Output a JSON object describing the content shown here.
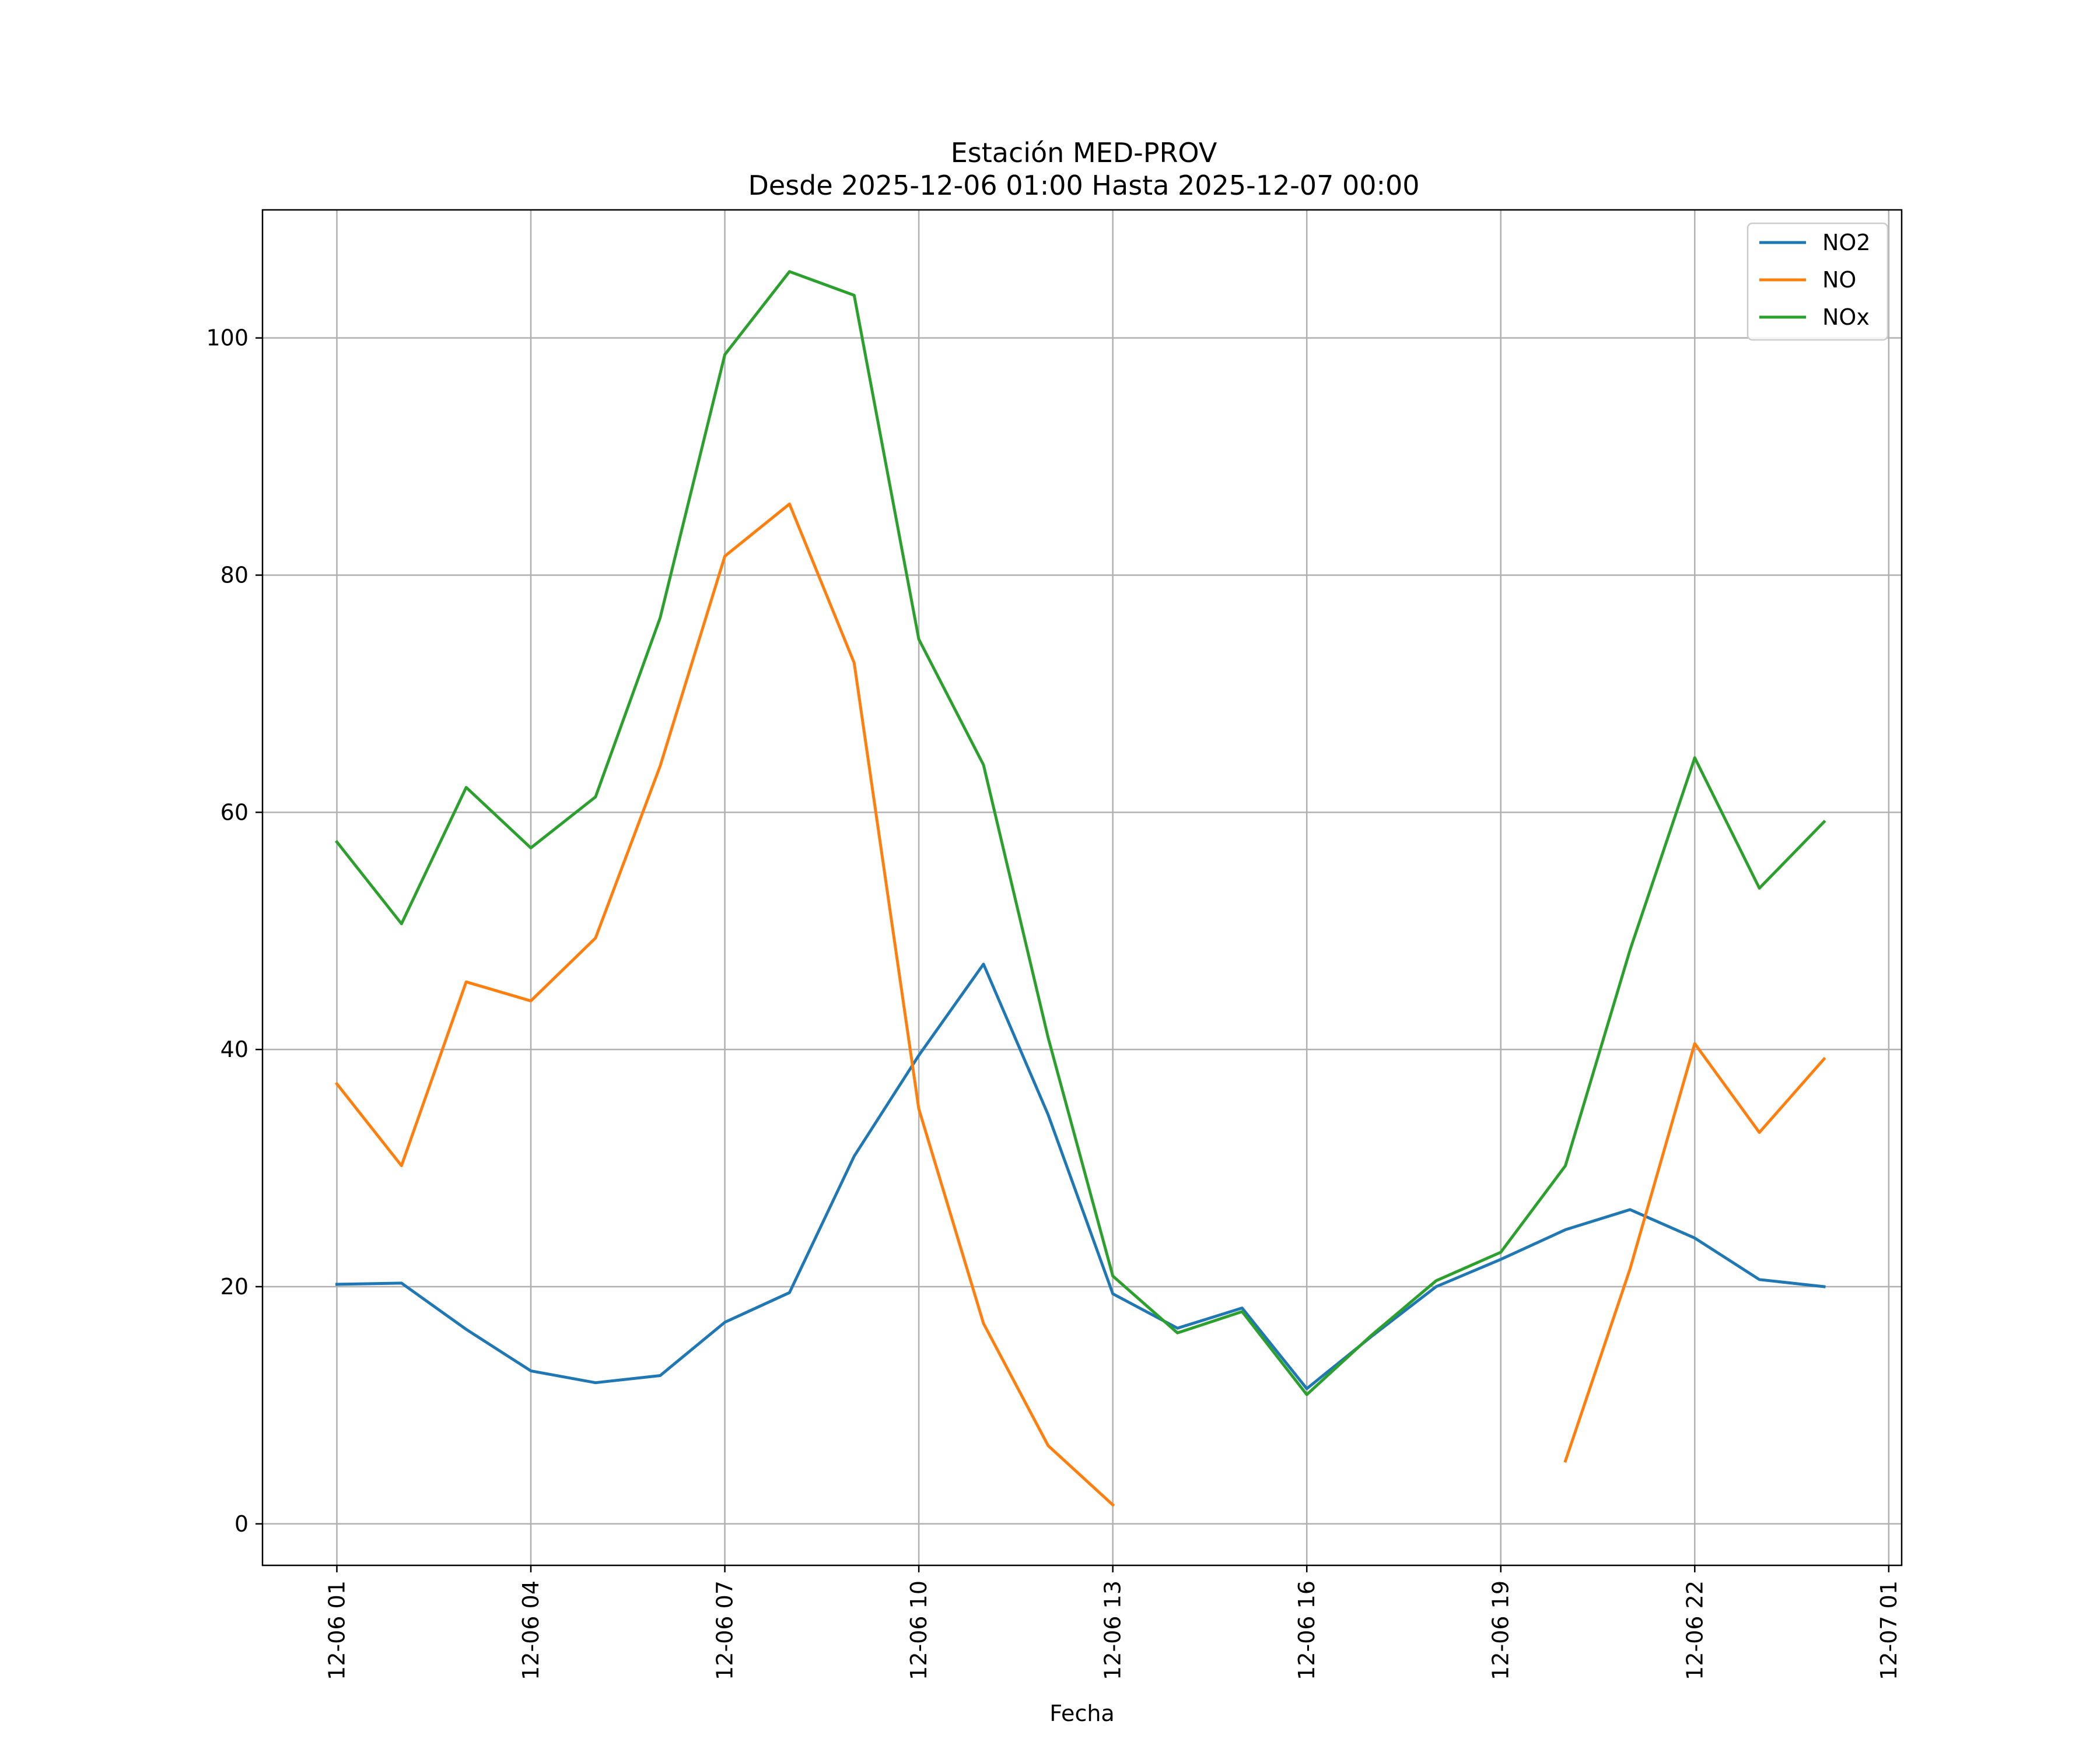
{
  "chart_data": {
    "type": "line",
    "title": "Estación MED-PROV",
    "subtitle": "Desde 2025-12-06 01:00 Hasta 2025-12-07 00:00",
    "xlabel": "Fecha",
    "ylabel": "",
    "x_ticks": [
      "12-06 01",
      "12-06 04",
      "12-06 07",
      "12-06 10",
      "12-06 13",
      "12-06 16",
      "12-06 19",
      "12-06 22",
      "12-07 01"
    ],
    "y_ticks": [
      "0",
      "20",
      "40",
      "60",
      "80",
      "100"
    ],
    "xlim": [
      -1.15,
      24.2
    ],
    "ylim": [
      -3.5,
      110.8
    ],
    "grid": true,
    "legend_position": "top-right",
    "x": [
      "2025-12-06 01:00",
      "2025-12-06 02:00",
      "2025-12-06 03:00",
      "2025-12-06 04:00",
      "2025-12-06 05:00",
      "2025-12-06 06:00",
      "2025-12-06 07:00",
      "2025-12-06 08:00",
      "2025-12-06 09:00",
      "2025-12-06 10:00",
      "2025-12-06 11:00",
      "2025-12-06 12:00",
      "2025-12-06 13:00",
      "2025-12-06 14:00",
      "2025-12-06 15:00",
      "2025-12-06 16:00",
      "2025-12-06 17:00",
      "2025-12-06 18:00",
      "2025-12-06 19:00",
      "2025-12-06 20:00",
      "2025-12-06 21:00",
      "2025-12-06 22:00",
      "2025-12-06 23:00",
      "2025-12-07 00:00"
    ],
    "series": [
      {
        "name": "NO2",
        "color": "#1f77b4",
        "values": [
          20.2,
          20.3,
          16.4,
          12.9,
          11.9,
          12.5,
          17.0,
          19.5,
          31.0,
          39.5,
          47.2,
          34.5,
          19.4,
          16.5,
          18.2,
          11.4,
          15.8,
          20.0,
          22.3,
          24.8,
          26.5,
          24.1,
          20.6,
          20.0
        ]
      },
      {
        "name": "NO",
        "color": "#ff7f0e",
        "values": [
          37.1,
          30.2,
          45.7,
          44.1,
          49.4,
          63.9,
          81.6,
          86.0,
          72.6,
          35.0,
          16.9,
          6.6,
          1.6,
          null,
          null,
          null,
          null,
          null,
          null,
          5.3,
          21.5,
          40.5,
          33.0,
          39.2
        ]
      },
      {
        "name": "NOx",
        "color": "#2ca02c",
        "values": [
          57.5,
          50.6,
          62.1,
          57.0,
          61.3,
          76.4,
          98.6,
          105.6,
          103.6,
          74.6,
          64.0,
          41.0,
          20.9,
          16.1,
          17.9,
          10.9,
          15.9,
          20.5,
          22.9,
          30.2,
          48.4,
          64.6,
          53.6,
          59.2
        ]
      }
    ]
  }
}
